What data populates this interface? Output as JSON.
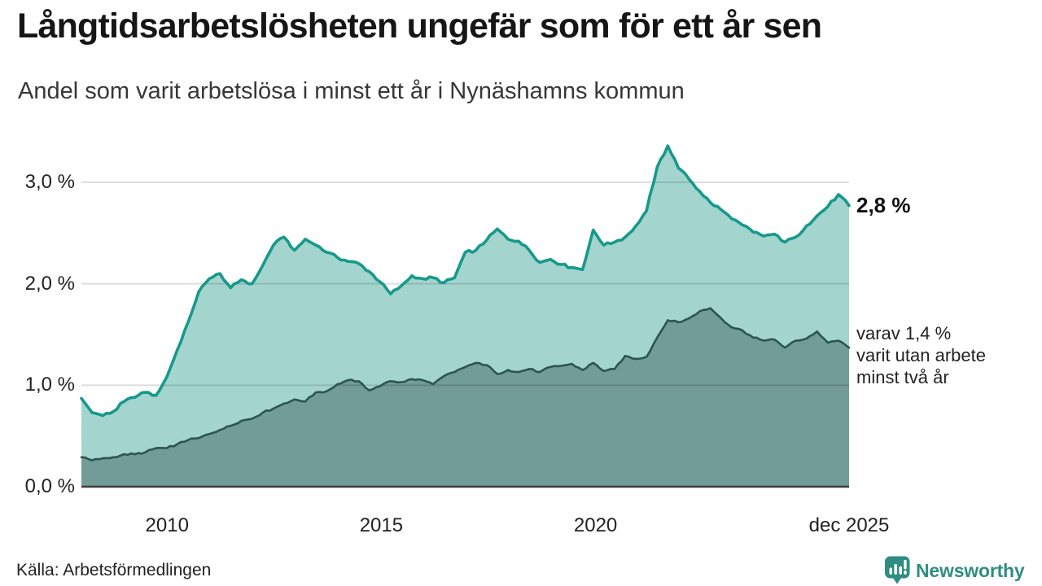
{
  "header": {
    "title": "Långtidsarbetslösheten ungefär som för ett år sen",
    "subtitle": "Andel som varit arbetslösa i minst ett år i Nynäshamns kommun"
  },
  "annotations": {
    "latest_total": "2,8 %",
    "secondary_line1": "varav 1,4 %",
    "secondary_line2": "varit utan arbete",
    "secondary_line3": "minst två år"
  },
  "footer": {
    "source": "Källa: Arbetsförmedlingen",
    "brand": "Newsworthy"
  },
  "colors": {
    "line_total": "#17998b",
    "fill_total": "#a3d5ce",
    "line_two_years": "#2d5550",
    "fill_two_years": "#719c97",
    "gridline": "rgba(0,0,0,0.13)",
    "baseline": "#3c3c3c",
    "brand_teal": "#2f8d81"
  },
  "chart_data": {
    "type": "area",
    "title": "Långtidsarbetslösheten ungefär som för ett år sen",
    "subtitle": "Andel som varit arbetslösa i minst ett år i Nynäshamns kommun",
    "unit": "%",
    "x_domain": [
      2008.0,
      2025.917
    ],
    "points_per_year": 4,
    "ylim": [
      0,
      3.5
    ],
    "grid": true,
    "x_ticks": [
      {
        "label": "2010",
        "year": 2010
      },
      {
        "label": "2015",
        "year": 2015
      },
      {
        "label": "2020",
        "year": 2020
      },
      {
        "label": "dec 2025",
        "year": 2025.917
      }
    ],
    "y_ticks": [
      {
        "label": "3,0 %",
        "value": 3.0
      },
      {
        "label": "2,0 %",
        "value": 2.0
      },
      {
        "label": "1,0 %",
        "value": 1.0
      },
      {
        "label": "0,0 %",
        "value": 0.0
      }
    ],
    "series": [
      {
        "name": "Andel arbetslösa minst ett år",
        "latest_label": "2,8 %",
        "values": [
          0.87,
          0.73,
          0.7,
          0.74,
          0.84,
          0.88,
          0.93,
          0.9,
          1.08,
          1.35,
          1.62,
          1.92,
          2.05,
          2.1,
          1.96,
          2.04,
          2.0,
          2.18,
          2.38,
          2.46,
          2.33,
          2.44,
          2.38,
          2.31,
          2.26,
          2.22,
          2.2,
          2.12,
          2.02,
          1.9,
          1.98,
          2.08,
          2.05,
          2.06,
          2.01,
          2.06,
          2.31,
          2.33,
          2.43,
          2.54,
          2.44,
          2.42,
          2.33,
          2.21,
          2.24,
          2.19,
          2.16,
          2.14,
          2.53,
          2.38,
          2.41,
          2.46,
          2.57,
          2.72,
          3.15,
          3.36,
          3.14,
          3.03,
          2.91,
          2.8,
          2.73,
          2.64,
          2.58,
          2.51,
          2.47,
          2.49,
          2.41,
          2.46,
          2.57,
          2.67,
          2.76,
          2.88,
          2.77
        ]
      },
      {
        "name": "varav utan arbete minst två år",
        "latest_label": "1,4 %",
        "values": [
          0.29,
          0.26,
          0.28,
          0.29,
          0.32,
          0.32,
          0.34,
          0.38,
          0.38,
          0.42,
          0.46,
          0.48,
          0.52,
          0.56,
          0.6,
          0.65,
          0.67,
          0.73,
          0.77,
          0.82,
          0.86,
          0.84,
          0.93,
          0.94,
          1.01,
          1.05,
          1.04,
          0.95,
          0.99,
          1.04,
          1.03,
          1.06,
          1.05,
          1.01,
          1.09,
          1.13,
          1.18,
          1.22,
          1.2,
          1.11,
          1.15,
          1.13,
          1.16,
          1.13,
          1.18,
          1.19,
          1.21,
          1.15,
          1.22,
          1.14,
          1.16,
          1.29,
          1.26,
          1.28,
          1.47,
          1.64,
          1.62,
          1.66,
          1.73,
          1.76,
          1.66,
          1.57,
          1.54,
          1.47,
          1.44,
          1.45,
          1.37,
          1.44,
          1.46,
          1.53,
          1.42,
          1.44,
          1.37
        ]
      }
    ]
  }
}
